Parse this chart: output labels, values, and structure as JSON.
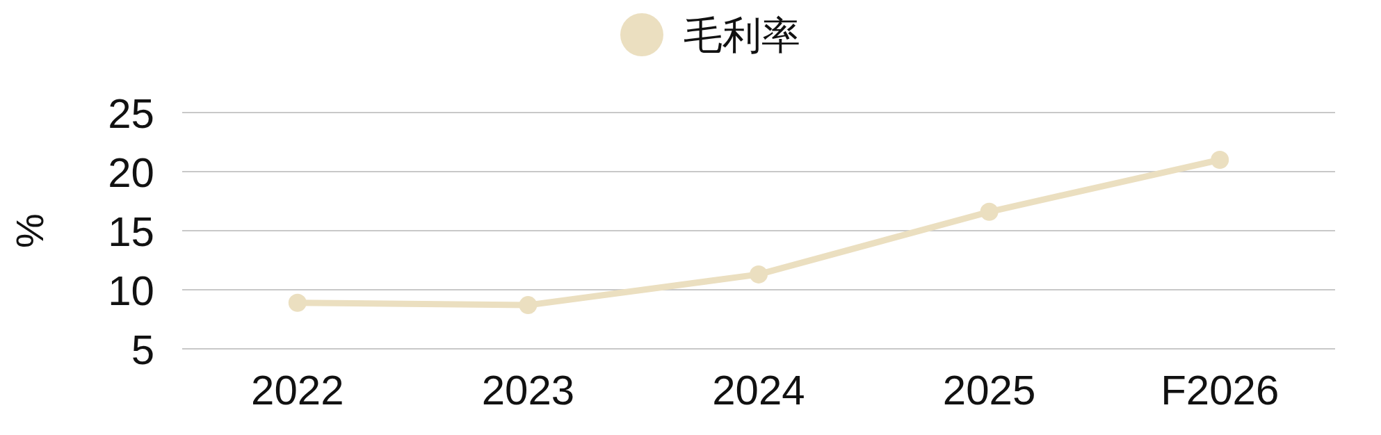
{
  "chart_data": {
    "type": "line",
    "ylabel": "%",
    "categories": [
      "2022",
      "2023",
      "2024",
      "2025",
      "F2026"
    ],
    "series": [
      {
        "name": "毛利率",
        "color": "#ebdfc0",
        "values": [
          8.9,
          8.7,
          11.3,
          16.6,
          21.0
        ]
      }
    ],
    "ylim": [
      5,
      25
    ],
    "yticks": [
      5,
      10,
      15,
      20,
      25
    ],
    "grid": "y",
    "legend": "top",
    "marker": "circle",
    "line_style": "solid"
  }
}
